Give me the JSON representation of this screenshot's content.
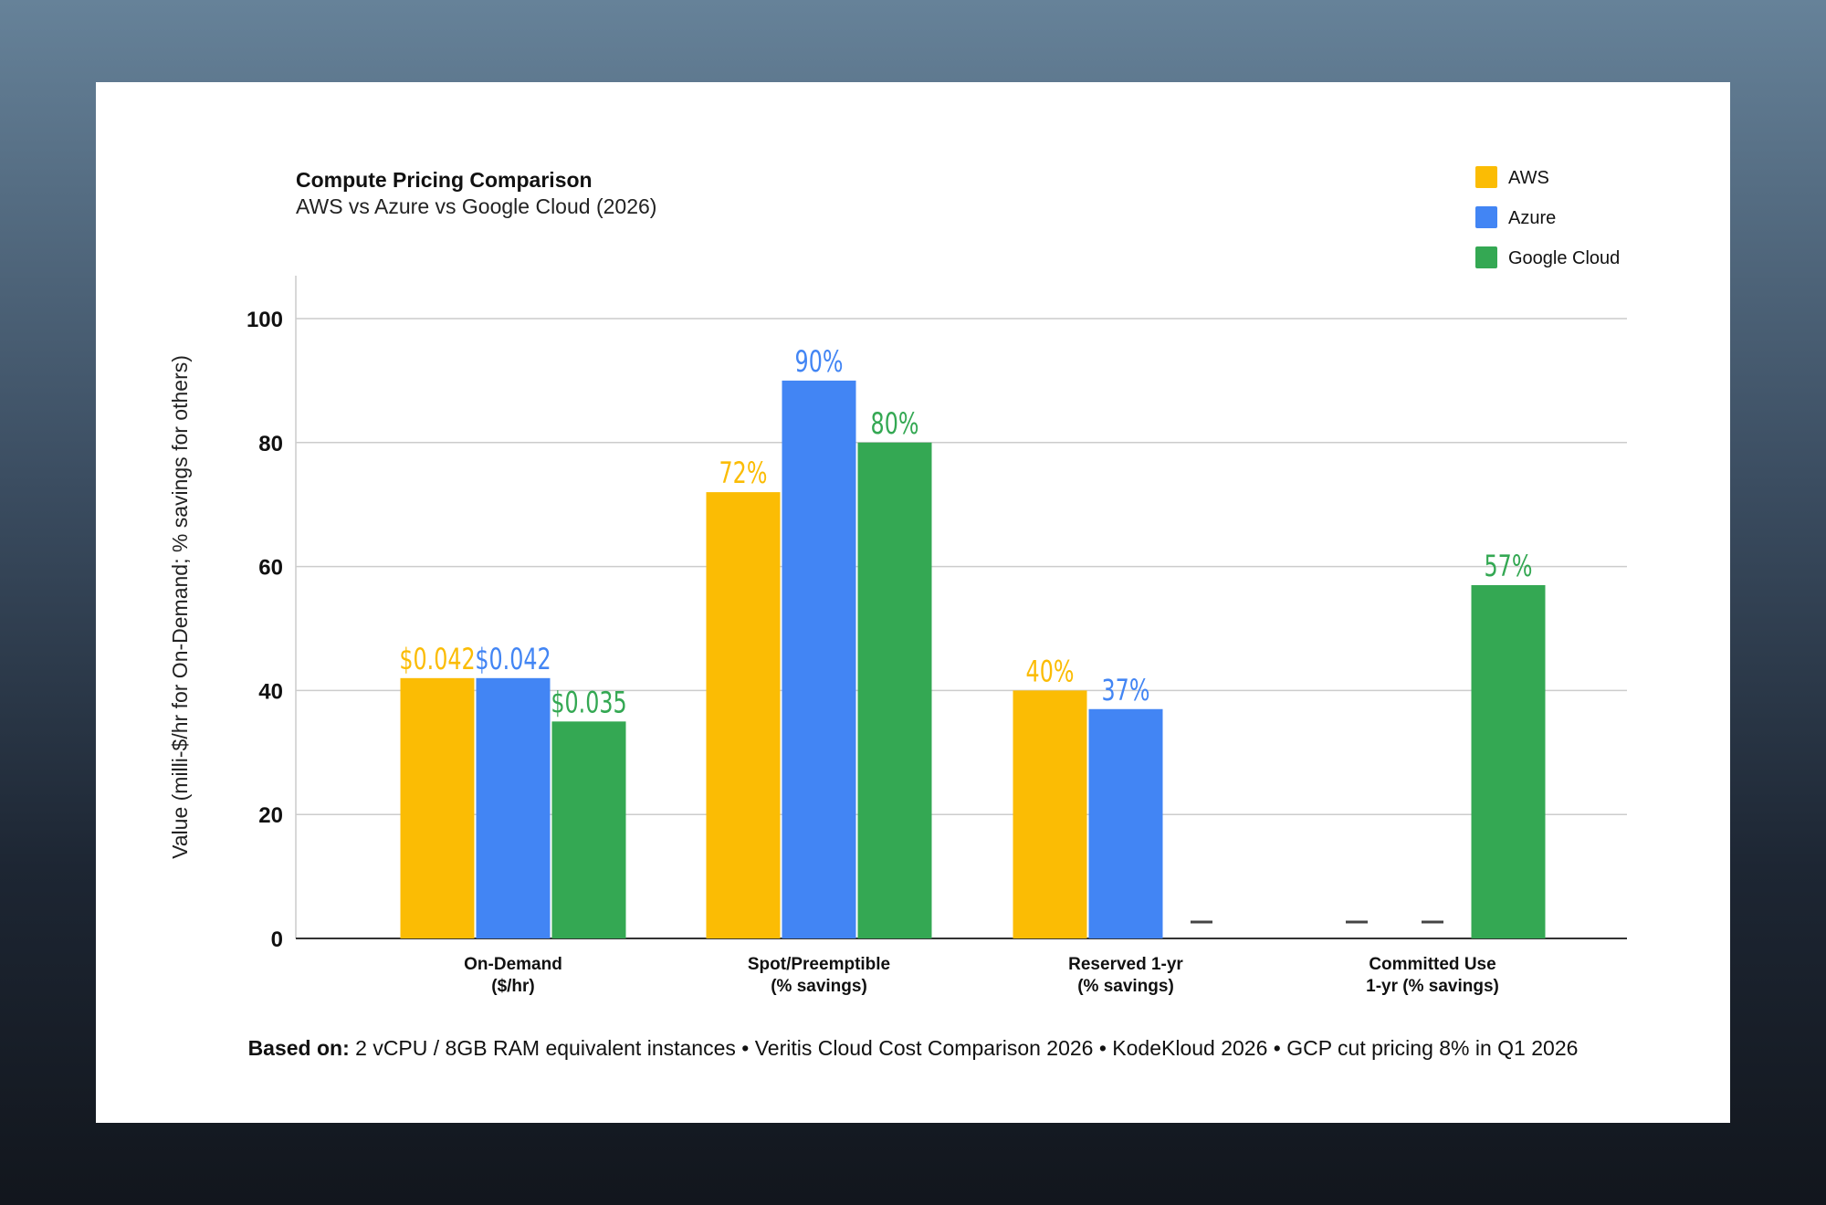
{
  "chart_data": {
    "type": "bar",
    "title": "Compute Pricing Comparison",
    "subtitle": "AWS vs Azure vs Google Cloud (2026)",
    "ylabel": "Value (milli-$/hr for On-Demand; % savings for others)",
    "xlabel": "",
    "ylim": [
      0,
      100
    ],
    "yticks": [
      0,
      20,
      40,
      60,
      80,
      100
    ],
    "grid": true,
    "legend_position": "top-right",
    "categories": [
      [
        "On-Demand",
        "($/hr)"
      ],
      [
        "Spot/Preemptible",
        "(% savings)"
      ],
      [
        "Reserved 1-yr",
        "(% savings)"
      ],
      [
        "Committed Use",
        "1-yr (% savings)"
      ]
    ],
    "series": [
      {
        "name": "AWS",
        "color": "#FBBC04",
        "values": [
          42,
          72,
          40,
          null
        ],
        "labels": [
          "$0.042",
          "72%",
          "40%",
          "—"
        ]
      },
      {
        "name": "Azure",
        "color": "#4285F4",
        "values": [
          42,
          90,
          37,
          null
        ],
        "labels": [
          "$0.042",
          "90%",
          "37%",
          "—"
        ]
      },
      {
        "name": "Google Cloud",
        "color": "#34A853",
        "values": [
          35,
          80,
          null,
          57
        ],
        "labels": [
          "$0.035",
          "80%",
          "—",
          "57%"
        ]
      }
    ]
  },
  "footnote": {
    "label": "Based on:",
    "text": "2 vCPU / 8GB RAM equivalent instances • Veritis Cloud Cost Comparison 2026 • KodeKloud 2026 • GCP cut pricing 8% in Q1 2026"
  }
}
